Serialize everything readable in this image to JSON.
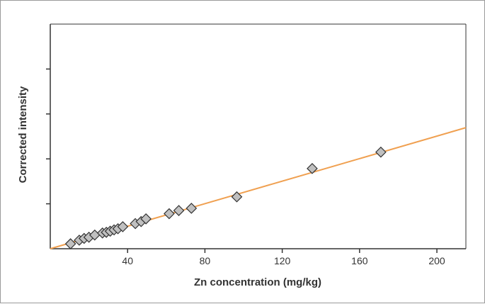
{
  "chart_data": {
    "type": "scatter",
    "title": "",
    "xlabel": "Zn concentration (mg/kg)",
    "ylabel": "Corrected intensity",
    "xlim": [
      0,
      215
    ],
    "ylim": [
      0,
      100
    ],
    "x_ticks": [
      40,
      80,
      120,
      160,
      200
    ],
    "y_ticks": [
      20,
      40,
      60,
      80
    ],
    "y_tick_labels_shown": false,
    "grid": false,
    "legend": "none",
    "colors": {
      "marker_fill": "#c0c0c0",
      "marker_edge": "#333333",
      "fit_line": "#f0a050",
      "axis": "#333333"
    },
    "series": [
      {
        "x": [
          10.5,
          15,
          17.5,
          20,
          23,
          27,
          29,
          31,
          33,
          35,
          37.5,
          44,
          47,
          49.5,
          61.5,
          66.5,
          73,
          96.5,
          135.5,
          171
        ],
        "y": [
          2.2,
          3.8,
          4.6,
          5.1,
          6.1,
          7.0,
          7.3,
          7.8,
          8.4,
          8.9,
          9.8,
          11.2,
          12.1,
          13.3,
          15.6,
          17.0,
          18.0,
          23.1,
          35.7,
          43.0
        ]
      }
    ],
    "fit_line": {
      "x": [
        0,
        215
      ],
      "y": [
        0,
        53.9
      ]
    }
  }
}
